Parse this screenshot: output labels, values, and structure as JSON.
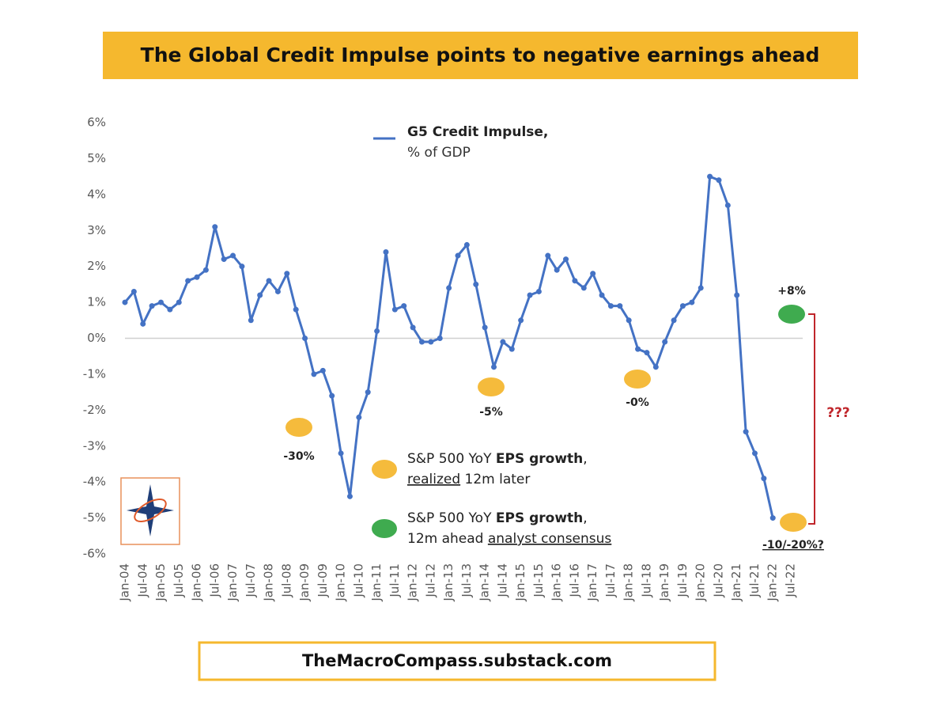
{
  "chart_data": {
    "type": "line",
    "title": "The Global Credit Impulse points to negative earnings ahead",
    "categories": [
      "Jan-04",
      null,
      "Jul-04",
      null,
      "Jan-05",
      null,
      "Jul-05",
      null,
      "Jan-06",
      null,
      "Jul-06",
      null,
      "Jan-07",
      null,
      "Jul-07",
      null,
      "Jan-08",
      null,
      "Jul-08",
      null,
      "Jan-09",
      null,
      "Jul-09",
      null,
      "Jan-10",
      null,
      "Jul-10",
      null,
      "Jan-11",
      null,
      "Jul-11",
      null,
      "Jan-12",
      null,
      "Jul-12",
      null,
      "Jan-13",
      null,
      "Jul-13",
      null,
      "Jan-14",
      null,
      "Jul-14",
      null,
      "Jan-15",
      null,
      "Jul-15",
      null,
      "Jan-16",
      null,
      "Jul-16",
      null,
      "Jan-17",
      null,
      "Jul-17",
      null,
      "Jan-18",
      null,
      "Jul-18",
      null,
      "Jan-19",
      null,
      "Jul-19",
      null,
      "Jan-20",
      null,
      "Jul-20",
      null,
      "Jan-21",
      null,
      "Jul-21",
      null,
      "Jan-22",
      null,
      "Jul-22"
    ],
    "series": [
      {
        "name": "G5 Credit Impulse,",
        "color": "#4472c4",
        "values": [
          1.0,
          1.3,
          0.4,
          0.9,
          1.0,
          0.8,
          1.0,
          1.6,
          1.7,
          1.9,
          3.1,
          2.2,
          2.3,
          2.0,
          0.5,
          1.2,
          1.6,
          1.3,
          1.8,
          0.8,
          0.0,
          -1.0,
          -0.9,
          -1.6,
          -3.2,
          -4.4,
          -2.2,
          -1.5,
          0.2,
          2.4,
          0.8,
          0.9,
          0.3,
          -0.1,
          -0.1,
          0.0,
          1.4,
          2.3,
          2.6,
          1.5,
          0.3,
          -0.8,
          -0.1,
          -0.3,
          0.5,
          1.2,
          1.3,
          2.3,
          1.9,
          2.2,
          1.6,
          1.4,
          1.8,
          1.2,
          0.9,
          0.9,
          0.5,
          -0.3,
          -0.4,
          -0.8,
          -0.1,
          0.5,
          0.9,
          1.0,
          1.4,
          4.5,
          4.4,
          3.7,
          1.2,
          -2.6,
          -3.2,
          -3.9,
          -5.0,
          null,
          null
        ]
      }
    ],
    "legend_note": "% of GDP",
    "ylim": [
      -6,
      6
    ],
    "yticks": [
      {
        "value": 6,
        "label": "6%"
      },
      {
        "value": 5,
        "label": "5%"
      },
      {
        "value": 4,
        "label": "4%"
      },
      {
        "value": 3,
        "label": "3%"
      },
      {
        "value": 2,
        "label": "2%"
      },
      {
        "value": 1,
        "label": "1%"
      },
      {
        "value": 0,
        "label": "0%"
      },
      {
        "value": -1,
        "label": "-1%"
      },
      {
        "value": -2,
        "label": "-2%"
      },
      {
        "value": -3,
        "label": "-3%"
      },
      {
        "value": -4,
        "label": "-4%"
      },
      {
        "value": -5,
        "label": "-5%"
      },
      {
        "value": -6,
        "label": "-6%"
      }
    ],
    "annotations": [
      {
        "text": "-30%",
        "color": "#f5bb3c"
      },
      {
        "text": "-5%",
        "color": "#f5bb3c"
      },
      {
        "text": "-0%",
        "color": "#f5bb3c"
      },
      {
        "text": "-10/-20%?",
        "color": "#f5bb3c"
      },
      {
        "text": "+8%",
        "color": "#3fab4f"
      }
    ],
    "eps_legend": [
      {
        "color": "#f5bb3c",
        "line1": [
          "S&P 500 YoY ",
          "EPS growth",
          ","
        ],
        "line2": [
          "realized",
          " 12m later"
        ]
      },
      {
        "color": "#3fab4f",
        "line1": [
          "S&P 500 YoY ",
          "EPS growth",
          ","
        ],
        "line2": [
          "12m ahead ",
          "analyst consensus"
        ]
      }
    ],
    "question": "???",
    "source": "TheMacroCompass.substack.com"
  }
}
